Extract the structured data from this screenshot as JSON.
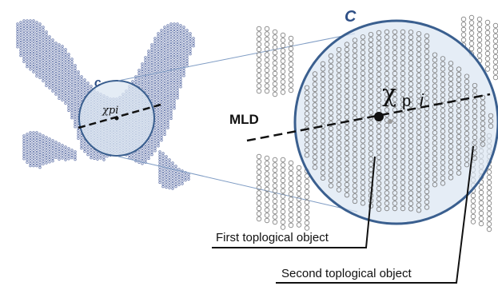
{
  "labels": {
    "small_circle": "c",
    "small_point": "χpi",
    "big_circle": "C",
    "big_point_chi": "χ",
    "big_point_sub": "p",
    "big_point_index": "i",
    "mld": "MLD",
    "first_object": "First toplogical object",
    "second_object": "Second toplogical object"
  },
  "colors": {
    "circle_fill": "#dbe6f2",
    "circle_stroke": "#3a5f8f",
    "bead": "#6f7fb0",
    "bead_zoom": "#7a7a7a",
    "label_blue": "#2e4f86",
    "connector": "#7f9cc4"
  }
}
